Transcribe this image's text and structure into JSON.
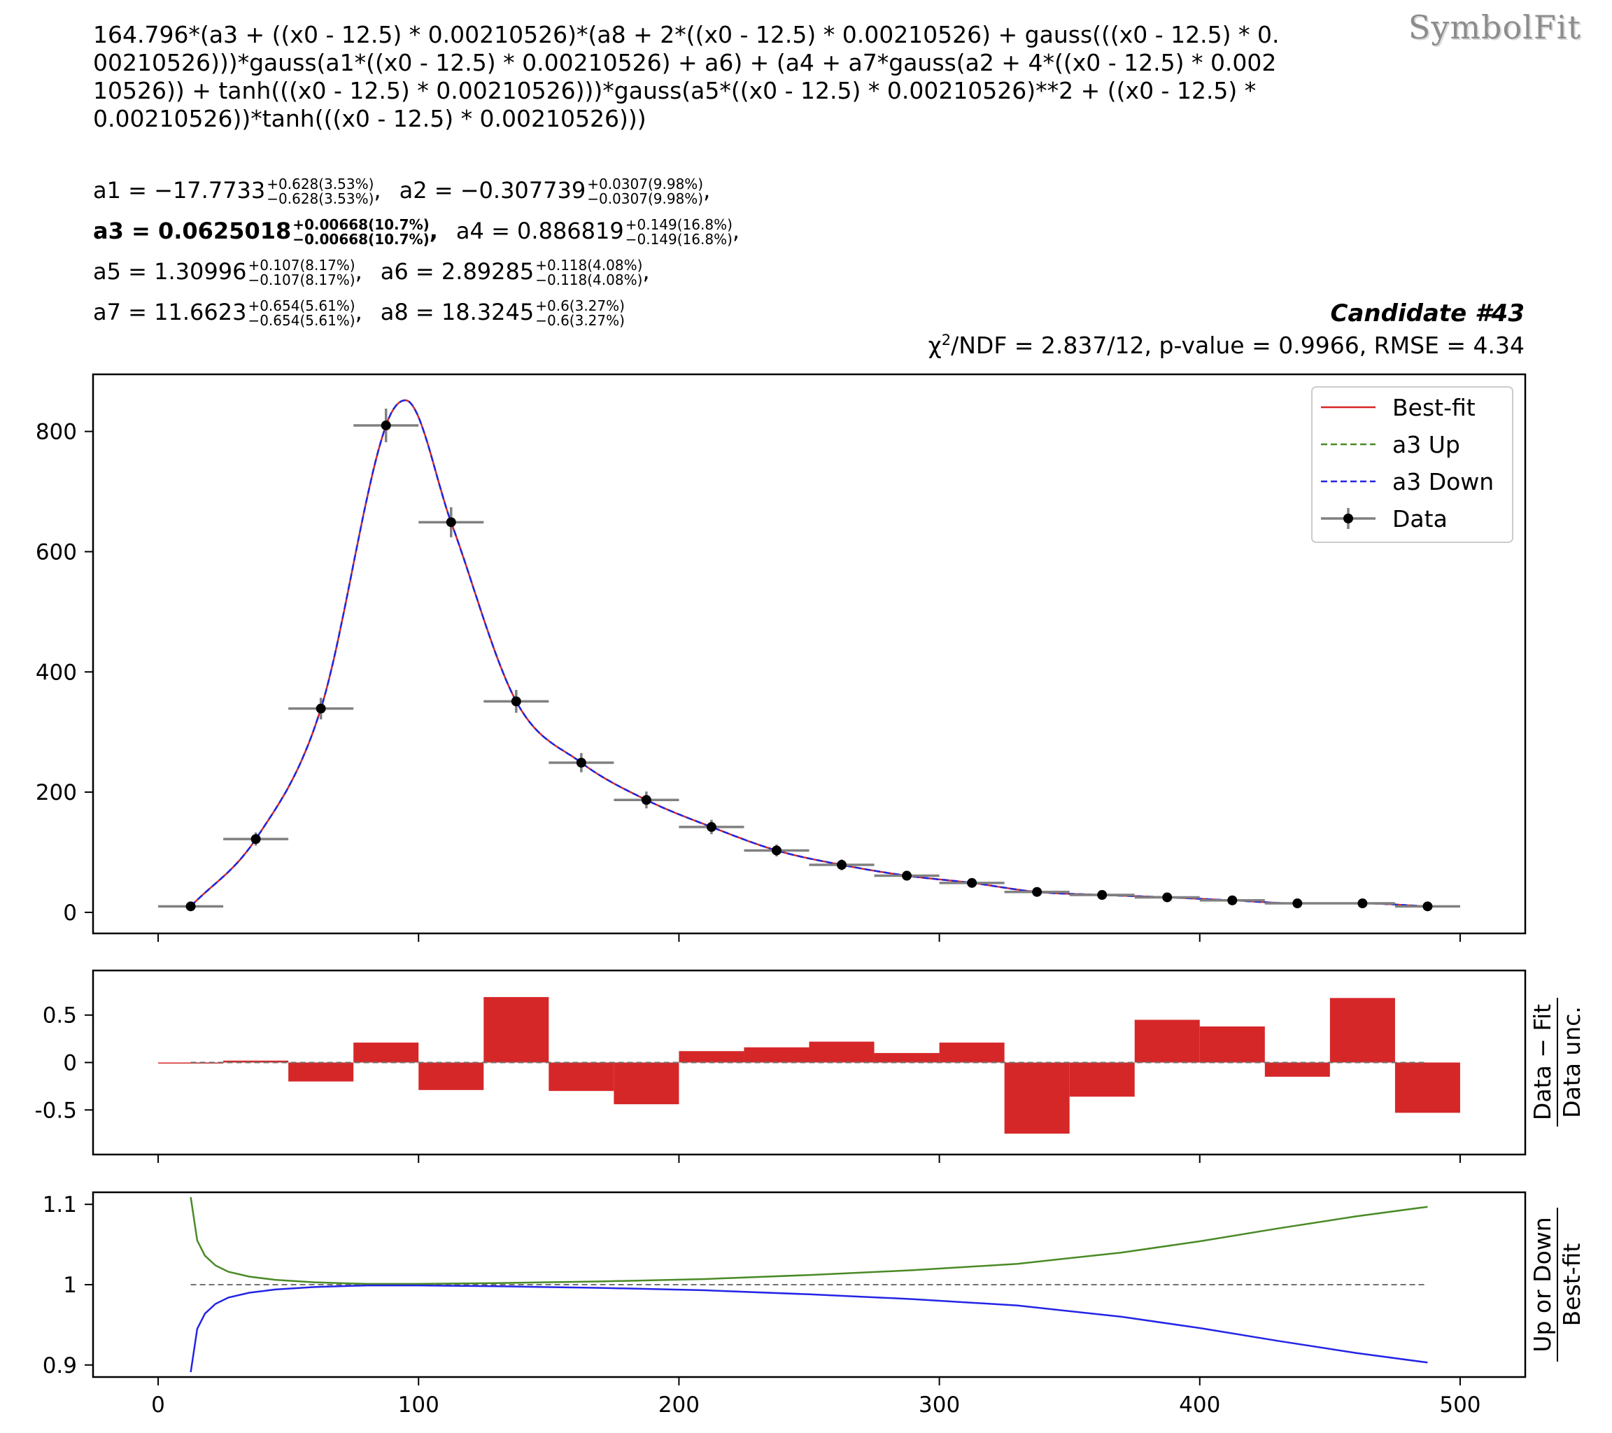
{
  "header": {
    "formula": "164.796*(a3 + ((x0 - 12.5) * 0.00210526)*(a8 + 2*((x0 - 12.5) * 0.00210526) + gauss(((x0 - 12.5) * 0.00210526)))*gauss(a1*((x0 - 12.5) * 0.00210526) + a6) + (a4 + a7*gauss(a2 + 4*((x0 - 12.5) * 0.00210526)) + tanh(((x0 - 12.5) * 0.00210526)))*gauss(a5*((x0 - 12.5) * 0.00210526)**2 + ((x0 - 12.5) * 0.00210526))*tanh(((x0 - 12.5) * 0.00210526)))",
    "watermark": "SymbolFit",
    "candidate": "Candidate #43",
    "chi_prefix": "χ",
    "chi_sup": "2",
    "chi_rest": "/NDF = 2.837/12, p-value = 0.9966, RMSE = 4.34",
    "params": [
      {
        "name": "a1",
        "value": "−17.7733",
        "up": "+0.628(3.53%)",
        "down": "−0.628(3.53%)",
        "bold": false
      },
      {
        "name": "a2",
        "value": "−0.307739",
        "up": "+0.0307(9.98%)",
        "down": "−0.0307(9.98%)",
        "bold": false
      },
      {
        "name": "a3",
        "value": "0.0625018",
        "up": "+0.00668(10.7%)",
        "down": "−0.00668(10.7%)",
        "bold": true
      },
      {
        "name": "a4",
        "value": "0.886819",
        "up": "+0.149(16.8%)",
        "down": "−0.149(16.8%)",
        "bold": false
      },
      {
        "name": "a5",
        "value": "1.30996",
        "up": "+0.107(8.17%)",
        "down": "−0.107(8.17%)",
        "bold": false
      },
      {
        "name": "a6",
        "value": "2.89285",
        "up": "+0.118(4.08%)",
        "down": "−0.118(4.08%)",
        "bold": false
      },
      {
        "name": "a7",
        "value": "11.6623",
        "up": "+0.654(5.61%)",
        "down": "−0.654(5.61%)",
        "bold": false
      },
      {
        "name": "a8",
        "value": "18.3245",
        "up": "+0.6(3.27%)",
        "down": "−0.6(3.27%)",
        "bold": false
      }
    ]
  },
  "chart_data": [
    {
      "type": "scatter",
      "panel": "main",
      "x": [
        12.5,
        37.5,
        62.5,
        87.5,
        112.5,
        137.5,
        162.5,
        187.5,
        212.5,
        237.5,
        262.5,
        287.5,
        312.5,
        337.5,
        362.5,
        387.5,
        412.5,
        437.5,
        462.5,
        487.5
      ],
      "y": [
        10,
        122,
        339,
        810,
        649,
        351,
        249,
        187,
        142,
        103,
        79,
        61,
        49,
        34,
        29,
        25,
        20,
        15,
        15,
        10
      ],
      "yerr": [
        3,
        11,
        18,
        28,
        25,
        19,
        16,
        14,
        12,
        10,
        9,
        8,
        7,
        6,
        5,
        5,
        4,
        4,
        4,
        3
      ],
      "bin_half_width": 12.5,
      "xlim": [
        -25,
        525
      ],
      "ylim": [
        -35,
        895
      ],
      "yticks": [
        0,
        200,
        400,
        600,
        800
      ],
      "ytick_labels": [
        "0",
        "200",
        "400",
        "600",
        "800"
      ],
      "legend": [
        "Best-fit",
        "a3 Up",
        "a3 Down",
        "Data"
      ],
      "legend_position": "top-right",
      "colors": {
        "fit": "#d62728",
        "up": "#4a8a26",
        "down": "#2424e6",
        "data": "#000000",
        "err": "#808080"
      }
    },
    {
      "type": "bar",
      "panel": "residual",
      "x": [
        12.5,
        37.5,
        62.5,
        87.5,
        112.5,
        137.5,
        162.5,
        187.5,
        212.5,
        237.5,
        262.5,
        287.5,
        312.5,
        337.5,
        362.5,
        387.5,
        412.5,
        437.5,
        462.5,
        487.5
      ],
      "values": [
        -0.01,
        0.02,
        -0.2,
        0.21,
        -0.29,
        0.69,
        -0.3,
        -0.44,
        0.12,
        0.16,
        0.22,
        0.1,
        0.21,
        -0.75,
        -0.36,
        0.45,
        0.38,
        -0.15,
        0.68,
        -0.53
      ],
      "ylabel_top": "Data − Fit",
      "ylabel_bottom": "Data unc.",
      "ylim": [
        -0.97,
        0.97
      ],
      "yticks": [
        0.5,
        0,
        -0.5
      ],
      "ytick_labels": [
        "0.5",
        "0",
        "-0.5"
      ],
      "color": "#d62728"
    },
    {
      "type": "line",
      "panel": "ratio",
      "x": [
        12.5,
        15,
        18,
        22,
        27,
        35,
        45,
        60,
        80,
        100,
        130,
        170,
        210,
        250,
        290,
        330,
        370,
        400,
        430,
        460,
        487.5
      ],
      "series": [
        {
          "name": "a3 Up",
          "values": [
            1.109,
            1.055,
            1.036,
            1.024,
            1.016,
            1.01,
            1.006,
            1.003,
            1.001,
            1.001,
            1.002,
            1.004,
            1.007,
            1.012,
            1.018,
            1.026,
            1.04,
            1.054,
            1.07,
            1.085,
            1.097
          ]
        },
        {
          "name": "a3 Down",
          "values": [
            0.891,
            0.945,
            0.964,
            0.976,
            0.984,
            0.99,
            0.994,
            0.997,
            0.999,
            0.999,
            0.998,
            0.996,
            0.993,
            0.988,
            0.982,
            0.974,
            0.96,
            0.946,
            0.93,
            0.915,
            0.903
          ]
        }
      ],
      "ylabel_top": "Up or Down",
      "ylabel_bottom": "Best-fit",
      "ylim": [
        0.885,
        1.115
      ],
      "yticks": [
        1.1,
        1,
        0.9
      ],
      "ytick_labels": [
        "1.1",
        "1",
        "0.9"
      ],
      "xticks": [
        0,
        100,
        200,
        300,
        400,
        500
      ],
      "xtick_labels": [
        "0",
        "100",
        "200",
        "300",
        "400",
        "500"
      ],
      "colors": {
        "up": "#4a8a26",
        "down": "#2424e6"
      }
    }
  ]
}
